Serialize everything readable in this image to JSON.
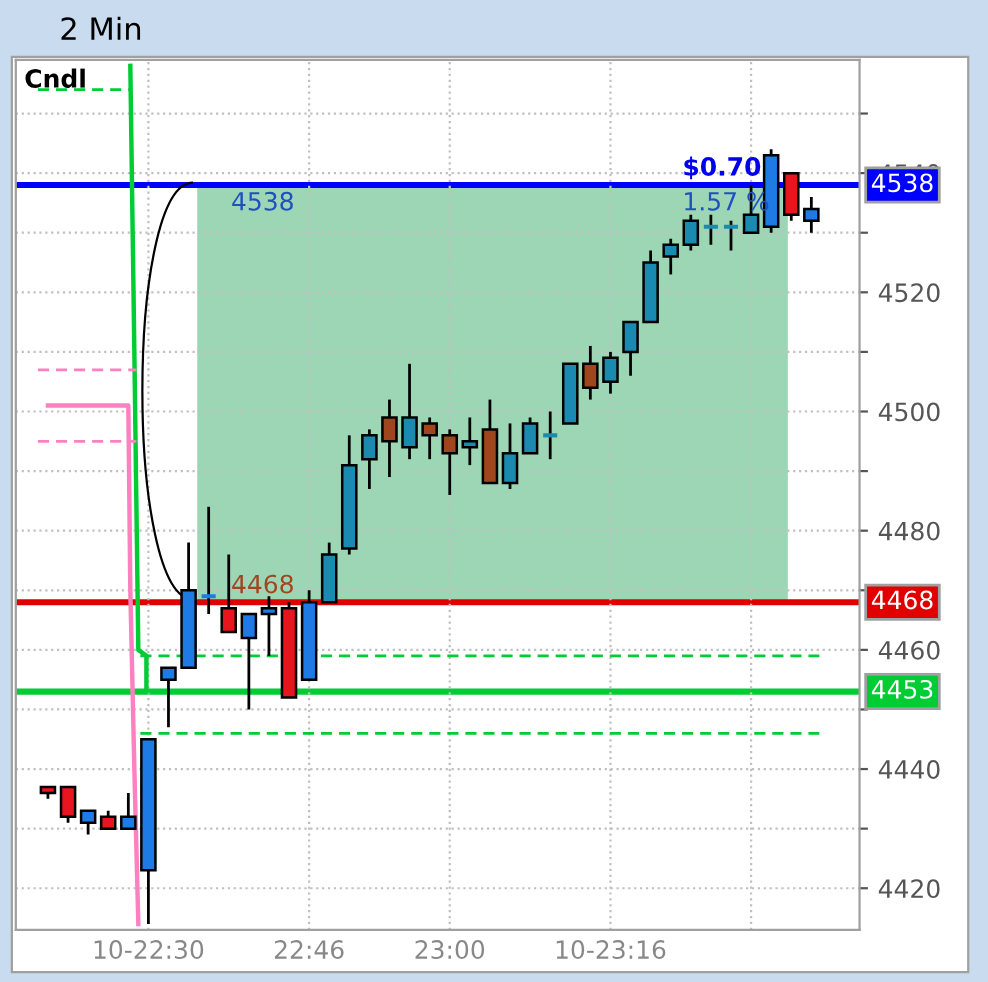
{
  "chart_data": {
    "type": "candlestick",
    "title": "2 Min",
    "annotations": [
      "Cndl",
      "4538",
      "4468",
      "$0.70",
      "1.57 %"
    ],
    "x": [
      22.3333,
      22.3667,
      22.4,
      22.4333,
      22.4667,
      22.5,
      22.5333,
      22.5667,
      22.6,
      22.6333,
      22.6667,
      22.7,
      22.7333,
      22.7667,
      22.8,
      22.8333,
      22.8667,
      22.9,
      22.9333,
      22.9667,
      23.0,
      23.0333,
      23.0667,
      23.1,
      23.1333,
      23.1667,
      23.2,
      23.2333,
      23.2667,
      23.3,
      23.3333,
      23.3667,
      23.4,
      23.4333,
      23.4667,
      23.5,
      23.5333,
      23.5667,
      23.6
    ],
    "ohlc": [
      [
        4437,
        4437,
        4435,
        4436
      ],
      [
        4437,
        4437,
        4431,
        4432
      ],
      [
        4431,
        4433,
        4429,
        4433
      ],
      [
        4432,
        4433,
        4430,
        4430
      ],
      [
        4430,
        4436,
        4430,
        4432
      ],
      [
        4423,
        4445,
        4414,
        4445
      ],
      [
        4455,
        4457,
        4447,
        4457
      ],
      [
        4457,
        4478,
        4457,
        4470
      ],
      [
        4469,
        4484,
        4466,
        4469
      ],
      [
        4467,
        4476,
        4463,
        4463
      ],
      [
        4462,
        4466,
        4450,
        4466
      ],
      [
        4466,
        4469,
        4459,
        4467
      ],
      [
        4467,
        4468,
        4452,
        4452
      ],
      [
        4455,
        4470,
        4455,
        4468
      ],
      [
        4468,
        4478,
        4468,
        4476
      ],
      [
        4477,
        4496,
        4476,
        4491
      ],
      [
        4492,
        4497,
        4487,
        4496
      ],
      [
        4499,
        4502,
        4489,
        4495
      ],
      [
        4494,
        4508,
        4492,
        4499
      ],
      [
        4498,
        4499,
        4492,
        4496
      ],
      [
        4496,
        4497,
        4486,
        4493
      ],
      [
        4494,
        4499,
        4491,
        4495
      ],
      [
        4497,
        4502,
        4488,
        4488
      ],
      [
        4488,
        4498,
        4487,
        4493
      ],
      [
        4493,
        4499,
        4493,
        4498
      ],
      [
        4496,
        4500,
        4492,
        4496
      ],
      [
        4498,
        4508,
        4498,
        4508
      ],
      [
        4508,
        4511,
        4502,
        4504
      ],
      [
        4505,
        4510,
        4503,
        4509
      ],
      [
        4510,
        4515,
        4506,
        4515
      ],
      [
        4515,
        4527,
        4515,
        4525
      ],
      [
        4526,
        4529,
        4523,
        4528
      ],
      [
        4528,
        4533,
        4527,
        4532
      ],
      [
        4531,
        4533,
        4528,
        4531
      ],
      [
        4531,
        4532,
        4527,
        4531
      ],
      [
        4530,
        4538,
        4530,
        4533
      ],
      [
        4531,
        4544,
        4530,
        4543
      ],
      [
        4540,
        4540,
        4532,
        4533
      ],
      [
        4532,
        4536,
        4530,
        4534
      ]
    ],
    "colors": [
      "#e8141e",
      "#e8141e",
      "#1e7be6",
      "#e8141e",
      "#1e7be6",
      "#1e7be6",
      "#1e7be6",
      "#1e7be6",
      "#1e7be6",
      "#e8141e",
      "#1e7be6",
      "#1e7be6",
      "#e8141e",
      "#1e7be6",
      "#1a8ab0",
      "#1a8ab0",
      "#1a8ab0",
      "#a0461e",
      "#1a8ab0",
      "#a0461e",
      "#a0461e",
      "#1a8ab0",
      "#a0461e",
      "#1a8ab0",
      "#1a8ab0",
      "#1a8ab0",
      "#1a8ab0",
      "#a0461e",
      "#1a8ab0",
      "#1a8ab0",
      "#1a8ab0",
      "#1a8ab0",
      "#1a8ab0",
      "#1a8ab0",
      "#1a8ab0",
      "#1a8ab0",
      "#1e7be6",
      "#e8141e",
      "#1e7be6"
    ],
    "series": [
      {
        "type": "line",
        "color": "#00cc33",
        "line_style": "solid",
        "x": [
          22.47,
          22.4767,
          22.4833,
          22.4967,
          22.4967
        ],
        "values": [
          4558,
          4510,
          4460,
          4459,
          4453
        ]
      },
      {
        "type": "line",
        "color": "#00cc33",
        "line_style": "dashed",
        "x": [
          22.4867,
          23.6133
        ],
        "values": [
          4459,
          4459
        ]
      },
      {
        "type": "line",
        "color": "#00cc33",
        "line_style": "dashed",
        "x": [
          22.4867,
          23.6133
        ],
        "values": [
          4446,
          4446
        ]
      },
      {
        "type": "line",
        "color": "#00cc33",
        "line_style": "dashed",
        "x": [
          22.3167,
          22.47
        ],
        "values": [
          4554,
          4554
        ]
      },
      {
        "type": "line",
        "color": "#ff80c0",
        "line_style": "solid",
        "x": [
          22.3333,
          22.4667,
          22.47,
          22.4767,
          22.4833
        ],
        "values": [
          4501,
          4501,
          4470,
          4440,
          4414
        ]
      },
      {
        "type": "line",
        "color": "#ff80c0",
        "line_style": "dashed",
        "x": [
          22.3167,
          22.48
        ],
        "values": [
          4507,
          4507
        ]
      },
      {
        "type": "line",
        "color": "#ff80c0",
        "line_style": "dashed",
        "x": [
          22.3167,
          22.48
        ],
        "values": [
          4495,
          4495
        ]
      }
    ],
    "bands": [
      {
        "axis": "y",
        "from": 4468,
        "to": 4538,
        "color": "#9dd6b4"
      }
    ],
    "ref_lines": [
      {
        "axis": "y",
        "value": 4538,
        "label": "4538",
        "color": "#0000ff"
      },
      {
        "axis": "y",
        "value": 4468,
        "label": "4468",
        "color": "#e00000"
      },
      {
        "axis": "y",
        "value": 4453,
        "label": "4453",
        "color": "#00cc33"
      }
    ],
    "xlim": [
      22.28,
      23.68
    ],
    "xticks": [
      {
        "value": 22.5,
        "label": "10-22:30"
      },
      {
        "value": 22.7667,
        "label": "22:46"
      },
      {
        "value": 23.0,
        "label": "23:00"
      },
      {
        "value": 23.2667,
        "label": "10-23:16"
      },
      {
        "value": 23.5,
        "label": null
      }
    ],
    "ylim": [
      4413,
      4559
    ],
    "yticks": [
      4420,
      {
        "value": 4430,
        "label": null
      },
      4440,
      {
        "value": 4450,
        "label": null
      },
      4460,
      {
        "value": 4470,
        "label": null
      },
      4480,
      {
        "value": 4490,
        "label": null
      },
      4500,
      {
        "value": 4510,
        "label": null
      },
      4520,
      {
        "value": 4530,
        "label": null
      },
      4540,
      {
        "value": 4550,
        "label": null
      }
    ],
    "grid": true
  }
}
